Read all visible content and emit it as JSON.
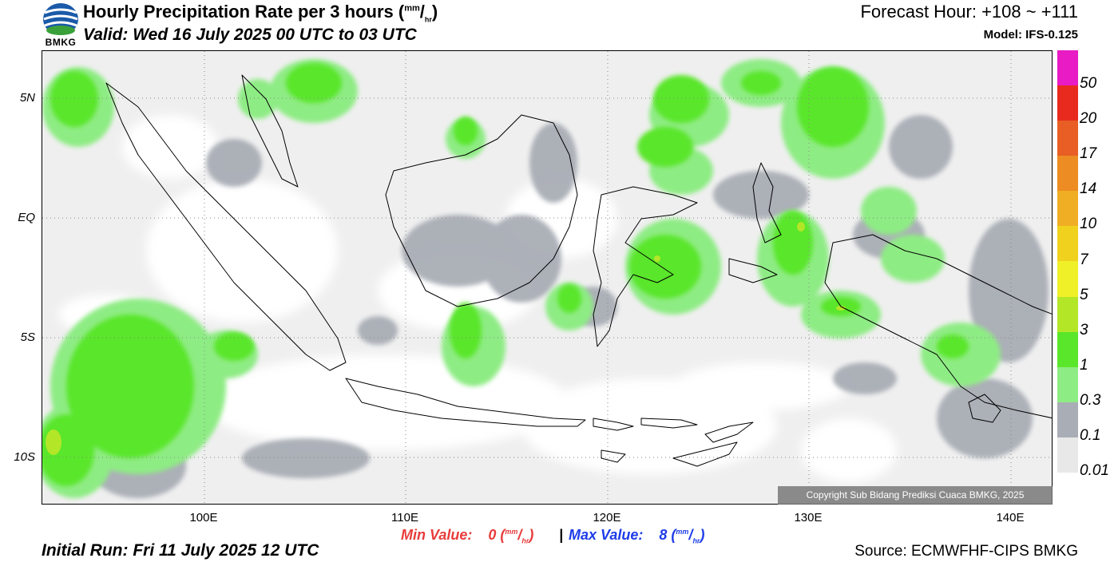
{
  "header": {
    "title": "Hourly Precipitation Rate per 3 hours (",
    "unit_num": "mm",
    "unit_den": "hr",
    "title_close": ")",
    "valid": "Valid: Wed 16 July 2025 00 UTC to 03 UTC",
    "forecast_hour": "Forecast Hour: +108 ~ +111",
    "model": "Model: IFS-0.125",
    "logo_text": "BMKG"
  },
  "map": {
    "lat_labels": [
      "5N",
      "EQ",
      "5S",
      "10S"
    ],
    "lon_labels": [
      "100E",
      "110E",
      "120E",
      "130E",
      "140E"
    ],
    "copyright": "Copyright Sub Bidang Prediksi Cuaca BMKG, 2025"
  },
  "legend": {
    "labels": [
      "50",
      "20",
      "17",
      "14",
      "10",
      "7",
      "5",
      "3",
      "1",
      "0.3",
      "0.1",
      "0.01"
    ],
    "colors": [
      "#e81bc4",
      "#e82a1e",
      "#e85e24",
      "#ec8c22",
      "#f0ae24",
      "#f0d21e",
      "#f0f028",
      "#b4e628",
      "#5ae62a",
      "#8eec84",
      "#a9adb5",
      "#e8e8e8"
    ]
  },
  "footer": {
    "min_label": "Min Value:",
    "min_value": "0",
    "max_label": "Max Value:",
    "max_value": "8",
    "separator": "|",
    "unit_num": "mm",
    "unit_den": "hr",
    "initial_run": "Initial Run: Fri 11 July 2025 12 UTC",
    "source": "Source: ECMWFHF-CIPS BMKG"
  }
}
